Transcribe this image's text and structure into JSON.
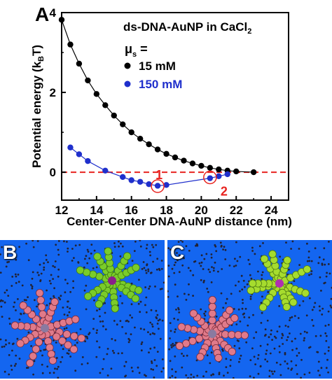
{
  "panel_labels": {
    "a": "A",
    "b": "B",
    "c": "C"
  },
  "chart_data": {
    "type": "scatter",
    "title": "ds-DNA-AuNP in CaCl",
    "title_subscript": "2",
    "xlabel": "Center-Center DNA-AuNP distance (nm)",
    "ylabel_main": "Potential energy (k",
    "ylabel_sub": "B",
    "ylabel_end": "T)",
    "xlim": [
      12,
      25
    ],
    "ylim": [
      -0.7,
      4.0
    ],
    "xticks": [
      "12",
      "14",
      "16",
      "18",
      "20",
      "22",
      "24"
    ],
    "yticks": [
      "0",
      "2",
      "4"
    ],
    "legend_header": "μ",
    "legend_header_sub": "s",
    "legend_header_end": " =",
    "annotations": [
      {
        "text": "1",
        "x": 17.5,
        "y": -0.35
      },
      {
        "text": "2",
        "x": 20.5,
        "y": -0.13
      }
    ],
    "reference_line": {
      "y": 0,
      "color": "#e8231f",
      "style": "dashed"
    },
    "series": [
      {
        "name": "15 mM",
        "color": "#000000",
        "x": [
          12.0,
          12.5,
          13.0,
          13.5,
          14.0,
          14.5,
          15.0,
          15.5,
          16.0,
          16.5,
          17.0,
          17.5,
          18.0,
          18.5,
          19.0,
          19.5,
          20.0,
          20.5,
          21.0,
          21.5,
          22.0,
          23.0
        ],
        "y": [
          3.82,
          3.2,
          2.72,
          2.3,
          1.96,
          1.68,
          1.42,
          1.2,
          1.0,
          0.84,
          0.7,
          0.57,
          0.46,
          0.37,
          0.29,
          0.22,
          0.16,
          0.11,
          0.07,
          0.04,
          0.02,
          0.0
        ]
      },
      {
        "name": "150 mM",
        "color": "#1f2fcc",
        "x": [
          12.5,
          13.0,
          13.5,
          14.5,
          15.5,
          16.0,
          16.5,
          17.0,
          17.5,
          18.0,
          20.5,
          21.0,
          21.5
        ],
        "y": [
          0.62,
          0.45,
          0.28,
          0.04,
          -0.12,
          -0.2,
          -0.24,
          -0.3,
          -0.34,
          -0.32,
          -0.15,
          -0.1,
          -0.05
        ]
      }
    ]
  },
  "colors": {
    "axis": "#000000",
    "panel_bg": "#1466f0",
    "circle": "#e8231f"
  }
}
